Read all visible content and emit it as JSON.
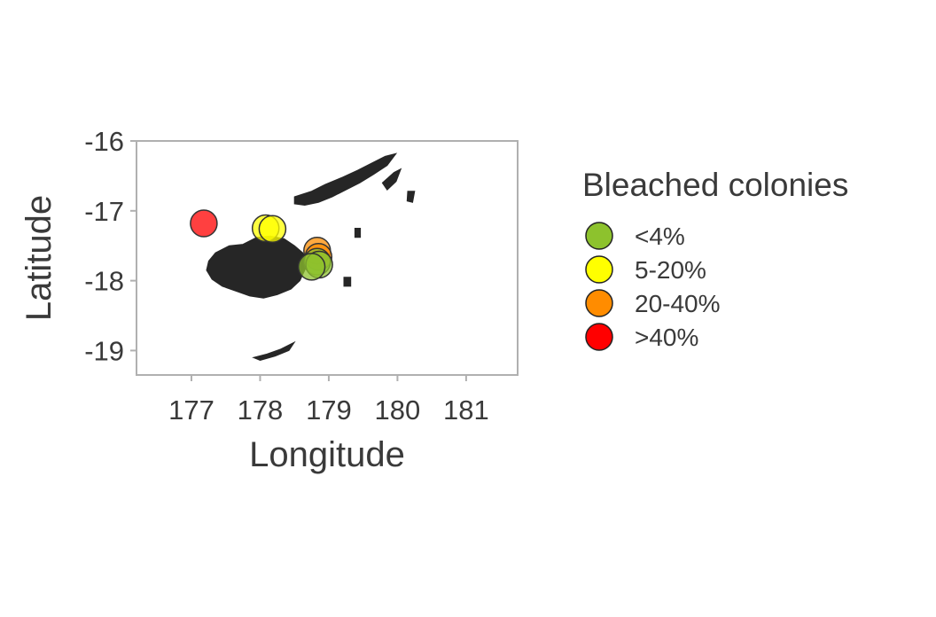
{
  "chart_data": {
    "type": "scatter",
    "xlabel": "Longitude",
    "ylabel": "Latitude",
    "xlim": [
      176.2,
      181.75
    ],
    "ylim": [
      -19.35,
      -16.0
    ],
    "x_ticks": [
      177,
      178,
      179,
      180,
      181
    ],
    "x_tick_labels": [
      "177",
      "178",
      "179",
      "180",
      "181"
    ],
    "y_ticks": [
      -16,
      -17,
      -18,
      -19
    ],
    "y_tick_labels": [
      "-16",
      "-17",
      "-18",
      "-19"
    ],
    "grid": false,
    "legend": {
      "title": "Bleached colonies",
      "placement": "right",
      "entries": [
        {
          "label": "<4%",
          "color": "#8dc22d"
        },
        {
          "label": "5-20%",
          "color": "#ffff00"
        },
        {
          "label": "20-40%",
          "color": "#ff8c00"
        },
        {
          "label": ">40%",
          "color": "#ff0000"
        }
      ]
    },
    "points": [
      {
        "x": 177.18,
        "y": -17.18,
        "category": ">40%"
      },
      {
        "x": 178.08,
        "y": -17.25,
        "category": "5-20%"
      },
      {
        "x": 178.18,
        "y": -17.26,
        "category": "5-20%"
      },
      {
        "x": 178.83,
        "y": -17.57,
        "category": "20-40%"
      },
      {
        "x": 178.85,
        "y": -17.66,
        "category": "20-40%"
      },
      {
        "x": 178.83,
        "y": -17.73,
        "category": "<4%"
      },
      {
        "x": 178.86,
        "y": -17.77,
        "category": "<4%"
      },
      {
        "x": 178.75,
        "y": -17.8,
        "category": "<4%"
      }
    ],
    "land": [
      {
        "name": "viti-levu",
        "coords": [
          [
            177.75,
            -17.48
          ],
          [
            177.95,
            -17.38
          ],
          [
            178.15,
            -17.36
          ],
          [
            178.35,
            -17.4
          ],
          [
            178.5,
            -17.5
          ],
          [
            178.62,
            -17.6
          ],
          [
            178.68,
            -17.72
          ],
          [
            178.65,
            -17.85
          ],
          [
            178.58,
            -18.0
          ],
          [
            178.45,
            -18.12
          ],
          [
            178.25,
            -18.2
          ],
          [
            178.05,
            -18.25
          ],
          [
            177.85,
            -18.22
          ],
          [
            177.65,
            -18.15
          ],
          [
            177.45,
            -18.08
          ],
          [
            177.3,
            -17.98
          ],
          [
            177.22,
            -17.85
          ],
          [
            177.25,
            -17.72
          ],
          [
            177.35,
            -17.6
          ],
          [
            177.55,
            -17.5
          ]
        ]
      },
      {
        "name": "vanua-levu",
        "coords": [
          [
            178.5,
            -16.8
          ],
          [
            178.75,
            -16.72
          ],
          [
            178.95,
            -16.62
          ],
          [
            179.2,
            -16.52
          ],
          [
            179.42,
            -16.42
          ],
          [
            179.62,
            -16.32
          ],
          [
            179.82,
            -16.22
          ],
          [
            179.98,
            -16.18
          ],
          [
            179.85,
            -16.35
          ],
          [
            179.65,
            -16.48
          ],
          [
            179.45,
            -16.6
          ],
          [
            179.25,
            -16.7
          ],
          [
            179.05,
            -16.8
          ],
          [
            178.85,
            -16.88
          ],
          [
            178.65,
            -16.92
          ],
          [
            178.5,
            -16.9
          ]
        ]
      },
      {
        "name": "taveuni",
        "coords": [
          [
            179.78,
            -16.6
          ],
          [
            179.95,
            -16.45
          ],
          [
            180.05,
            -16.4
          ],
          [
            179.98,
            -16.58
          ],
          [
            179.85,
            -16.7
          ]
        ]
      },
      {
        "name": "kadavu",
        "coords": [
          [
            177.9,
            -19.1
          ],
          [
            178.1,
            -19.05
          ],
          [
            178.3,
            -18.98
          ],
          [
            178.5,
            -18.88
          ],
          [
            178.42,
            -19.0
          ],
          [
            178.22,
            -19.08
          ],
          [
            178.0,
            -19.14
          ]
        ]
      },
      {
        "name": "ovalau",
        "coords": [
          [
            178.77,
            -17.6
          ],
          [
            178.85,
            -17.6
          ],
          [
            178.85,
            -17.72
          ],
          [
            178.77,
            -17.72
          ]
        ]
      },
      {
        "name": "koro",
        "coords": [
          [
            179.38,
            -17.25
          ],
          [
            179.46,
            -17.25
          ],
          [
            179.46,
            -17.38
          ],
          [
            179.38,
            -17.38
          ]
        ]
      },
      {
        "name": "gau",
        "coords": [
          [
            179.22,
            -17.95
          ],
          [
            179.32,
            -17.95
          ],
          [
            179.32,
            -18.08
          ],
          [
            179.22,
            -18.08
          ]
        ]
      },
      {
        "name": "lakeba",
        "coords": [
          [
            180.15,
            -16.72
          ],
          [
            180.25,
            -16.72
          ],
          [
            180.22,
            -16.88
          ],
          [
            180.14,
            -16.86
          ]
        ]
      }
    ]
  }
}
